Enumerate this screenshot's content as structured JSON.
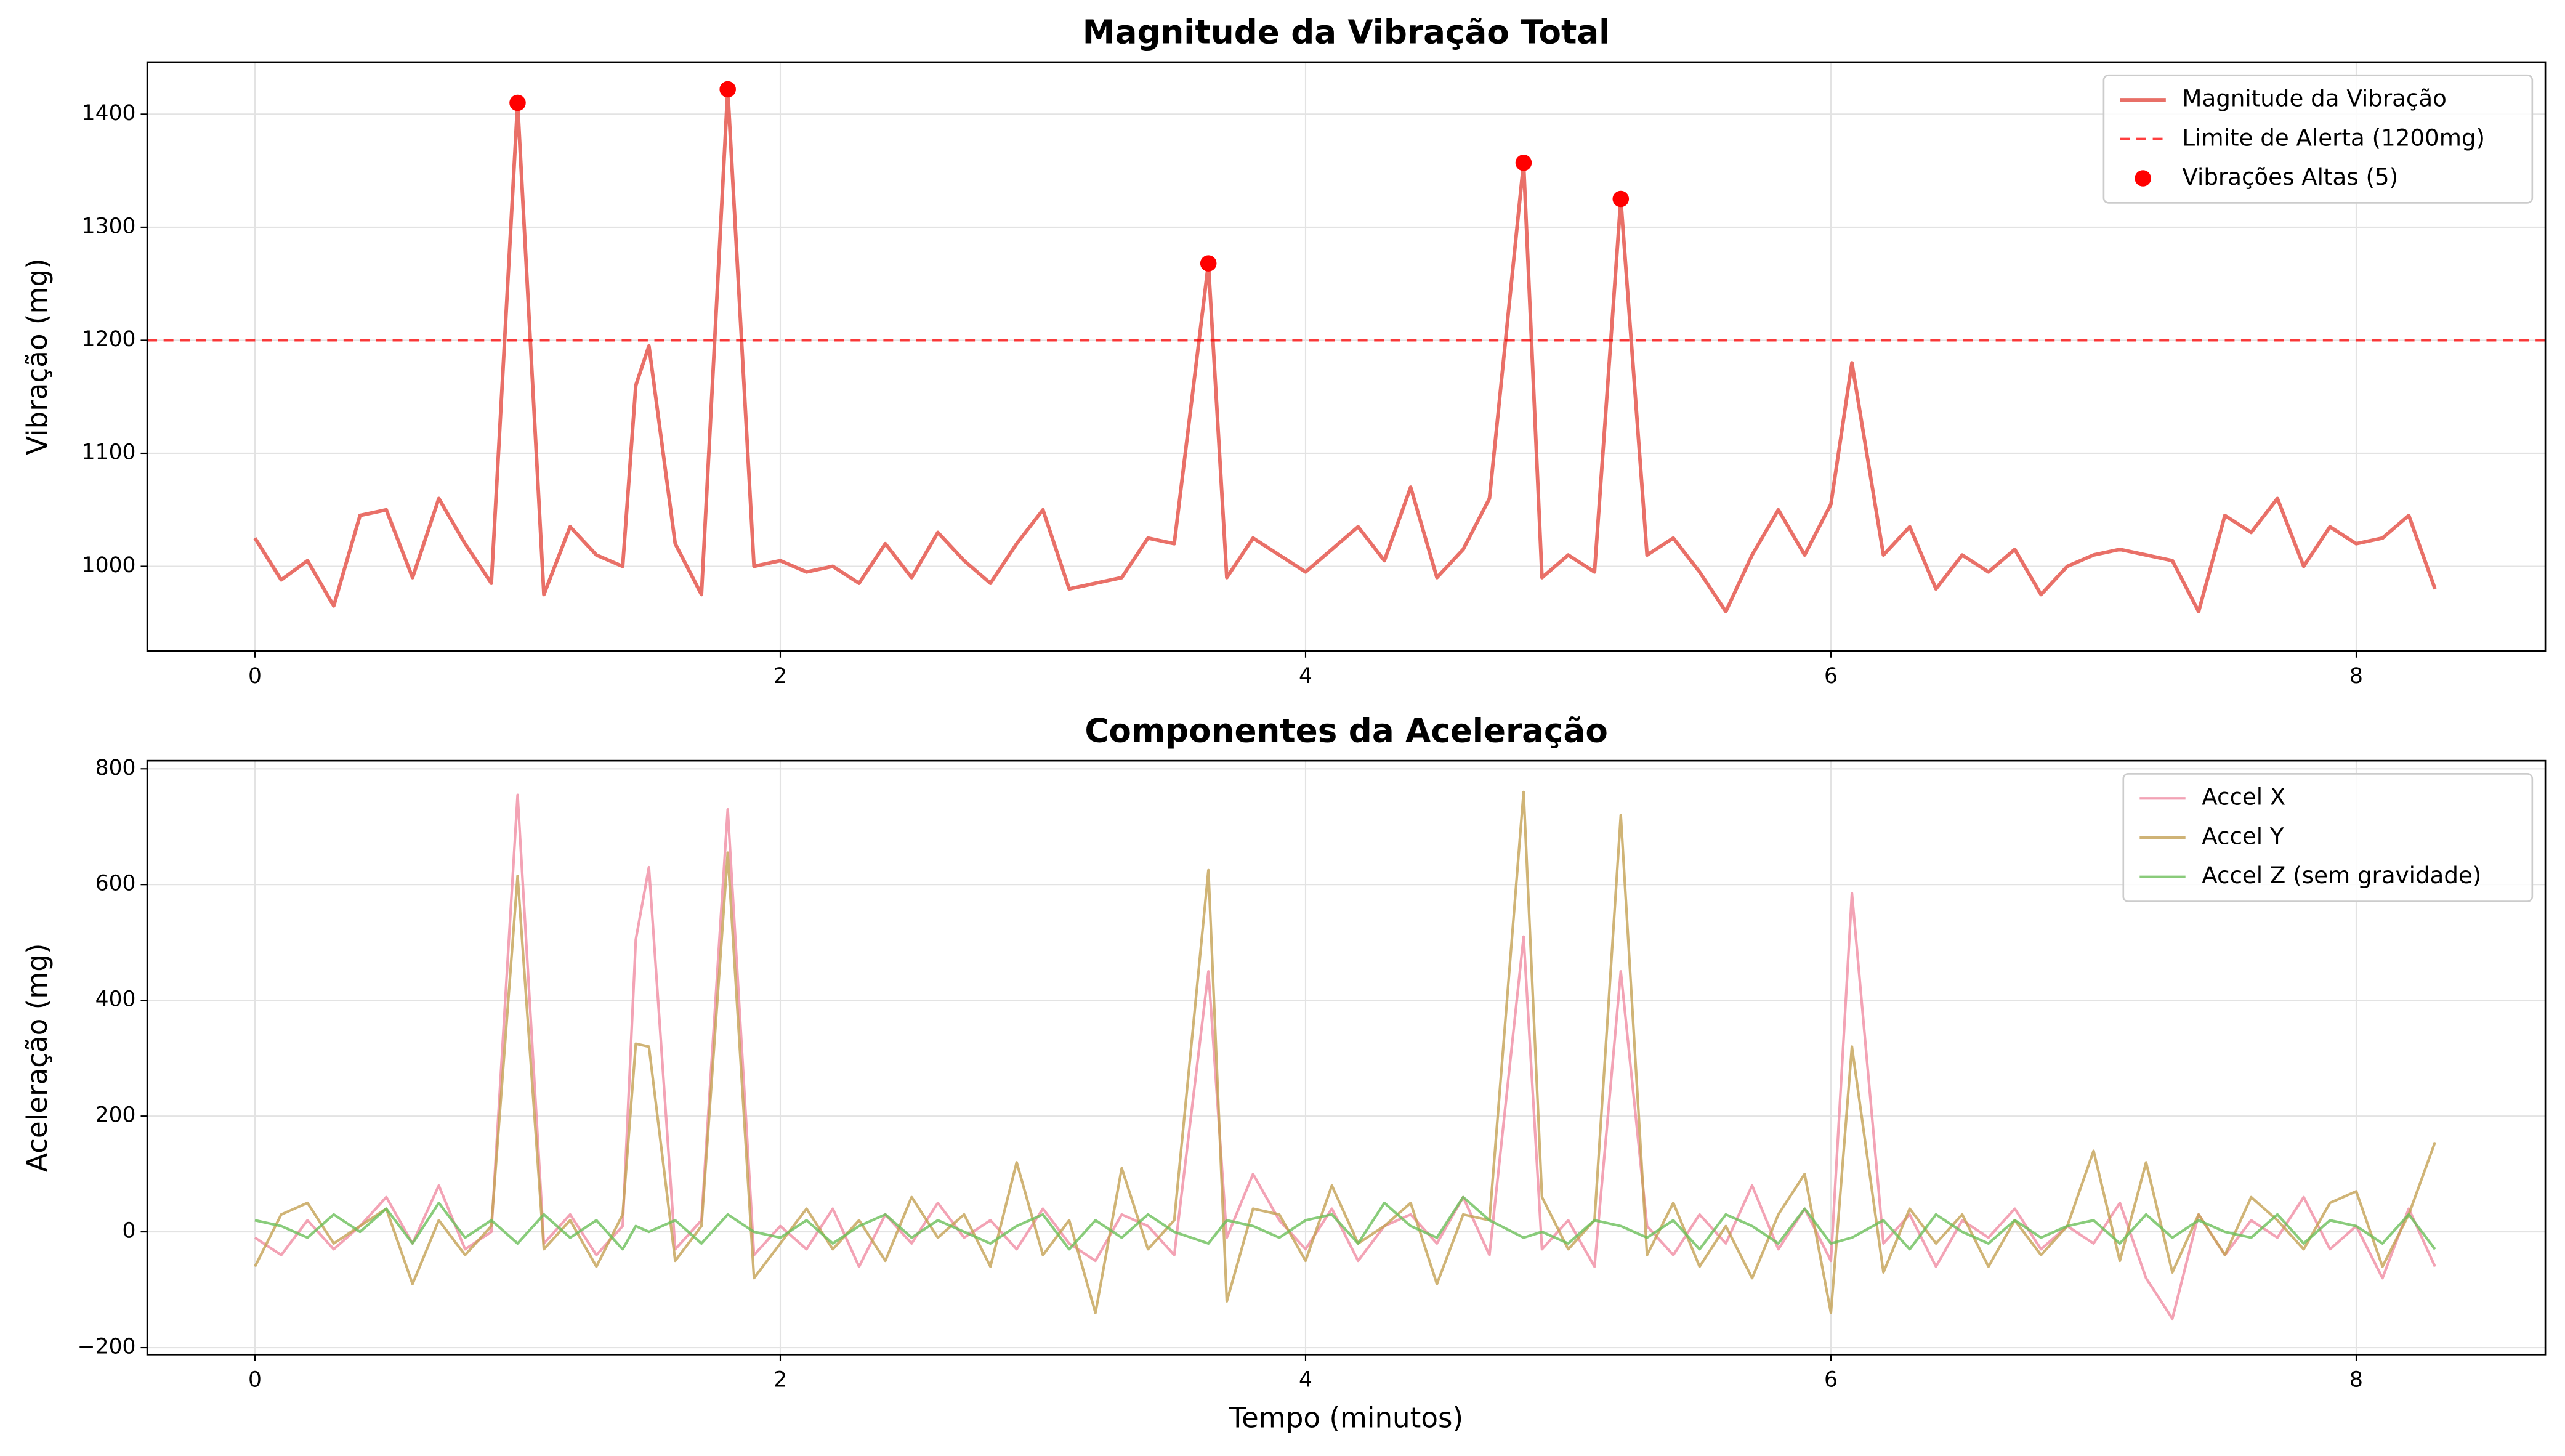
{
  "chart_data": [
    {
      "type": "line",
      "title": "Magnitude da Vibração Total",
      "ylabel": "Vibração (mg)",
      "x": [
        0,
        0.1,
        0.2,
        0.3,
        0.4,
        0.5,
        0.6,
        0.7,
        0.8,
        0.9,
        1.0,
        1.1,
        1.2,
        1.3,
        1.4,
        1.45,
        1.5,
        1.6,
        1.7,
        1.8,
        1.9,
        2.0,
        2.1,
        2.2,
        2.3,
        2.4,
        2.5,
        2.6,
        2.7,
        2.8,
        2.9,
        3.0,
        3.1,
        3.2,
        3.3,
        3.4,
        3.5,
        3.63,
        3.7,
        3.8,
        3.9,
        4.0,
        4.1,
        4.2,
        4.3,
        4.4,
        4.5,
        4.6,
        4.7,
        4.83,
        4.9,
        5.0,
        5.1,
        5.2,
        5.3,
        5.4,
        5.5,
        5.6,
        5.7,
        5.8,
        5.9,
        6.0,
        6.08,
        6.2,
        6.3,
        6.4,
        6.5,
        6.6,
        6.7,
        6.8,
        6.9,
        7.0,
        7.1,
        7.2,
        7.3,
        7.4,
        7.5,
        7.6,
        7.7,
        7.8,
        7.9,
        8.0,
        8.1,
        8.2,
        8.3
      ],
      "series": [
        {
          "name": "Magnitude da Vibração",
          "color": "#e5574d",
          "values": [
            1025,
            988,
            1005,
            965,
            1045,
            1050,
            990,
            1060,
            1020,
            985,
            1410,
            975,
            1035,
            1010,
            1000,
            1160,
            1195,
            1020,
            975,
            1422,
            1000,
            1005,
            995,
            1000,
            985,
            1020,
            990,
            1030,
            1005,
            985,
            1020,
            1050,
            980,
            985,
            990,
            1025,
            1020,
            1268,
            990,
            1025,
            1010,
            995,
            1015,
            1035,
            1005,
            1070,
            990,
            1015,
            1060,
            1357,
            990,
            1010,
            995,
            1325,
            1010,
            1025,
            995,
            960,
            1010,
            1050,
            1010,
            1055,
            1180,
            1010,
            1035,
            980,
            1010,
            995,
            1015,
            975,
            1000,
            1010,
            1015,
            1010,
            1005,
            960,
            1045,
            1030,
            1060,
            1000,
            1035,
            1020,
            1025,
            1045,
            980
          ]
        }
      ],
      "hline": {
        "name": "Limite de Alerta (1200mg)",
        "value": 1200,
        "color": "#ff0000"
      },
      "points": {
        "name": "Vibrações Altas (5)",
        "color": "#ff0000",
        "x": [
          1.0,
          1.8,
          3.63,
          4.83,
          5.2
        ],
        "values": [
          1410,
          1422,
          1268,
          1357,
          1325
        ]
      },
      "xlim": [
        -0.41,
        8.72
      ],
      "ylim": [
        925,
        1446
      ],
      "xticks": [
        0,
        2,
        4,
        6,
        8
      ],
      "yticks": [
        1000,
        1100,
        1200,
        1300,
        1400
      ],
      "grid": true,
      "legend": "upper right"
    },
    {
      "type": "line",
      "title": "Componentes da Aceleração",
      "xlabel": "Tempo (minutos)",
      "ylabel": "Aceleração (mg)",
      "x": [
        0,
        0.1,
        0.2,
        0.3,
        0.4,
        0.5,
        0.6,
        0.7,
        0.8,
        0.9,
        1.0,
        1.1,
        1.2,
        1.3,
        1.4,
        1.45,
        1.5,
        1.6,
        1.7,
        1.8,
        1.9,
        2.0,
        2.1,
        2.2,
        2.3,
        2.4,
        2.5,
        2.6,
        2.7,
        2.8,
        2.9,
        3.0,
        3.1,
        3.2,
        3.3,
        3.4,
        3.5,
        3.63,
        3.7,
        3.8,
        3.9,
        4.0,
        4.1,
        4.2,
        4.3,
        4.4,
        4.5,
        4.6,
        4.7,
        4.83,
        4.9,
        5.0,
        5.1,
        5.2,
        5.3,
        5.4,
        5.5,
        5.6,
        5.7,
        5.8,
        5.9,
        6.0,
        6.08,
        6.2,
        6.3,
        6.4,
        6.5,
        6.6,
        6.7,
        6.8,
        6.9,
        7.0,
        7.1,
        7.2,
        7.3,
        7.4,
        7.5,
        7.6,
        7.7,
        7.8,
        7.9,
        8.0,
        8.1,
        8.2,
        8.3
      ],
      "series": [
        {
          "name": "Accel X",
          "color": "#f08ca3",
          "values": [
            -10,
            -40,
            20,
            -30,
            10,
            60,
            -20,
            80,
            -30,
            0,
            755,
            -20,
            30,
            -40,
            10,
            505,
            630,
            -30,
            20,
            730,
            -40,
            10,
            -30,
            40,
            -60,
            30,
            -20,
            50,
            -10,
            20,
            -30,
            40,
            -20,
            -50,
            30,
            10,
            -40,
            450,
            -10,
            100,
            20,
            -30,
            40,
            -50,
            10,
            30,
            -20,
            60,
            -40,
            510,
            -30,
            20,
            -60,
            450,
            10,
            -40,
            30,
            -20,
            80,
            -30,
            40,
            -50,
            585,
            -20,
            30,
            -60,
            20,
            -10,
            40,
            -30,
            10,
            -20,
            50,
            -80,
            -150,
            30,
            -40,
            20,
            -10,
            60,
            -30,
            10,
            -80,
            40,
            -60
          ]
        },
        {
          "name": "Accel Y",
          "color": "#c4a154",
          "values": [
            -60,
            30,
            50,
            -20,
            10,
            40,
            -90,
            20,
            -40,
            10,
            615,
            -30,
            20,
            -60,
            30,
            325,
            320,
            -50,
            10,
            655,
            -80,
            -20,
            40,
            -30,
            20,
            -50,
            60,
            -10,
            30,
            -60,
            120,
            -40,
            20,
            -140,
            110,
            -30,
            20,
            625,
            -120,
            40,
            30,
            -50,
            80,
            -20,
            10,
            50,
            -90,
            30,
            20,
            760,
            60,
            -30,
            20,
            720,
            -40,
            50,
            -60,
            10,
            -80,
            30,
            100,
            -140,
            320,
            -70,
            40,
            -20,
            30,
            -60,
            20,
            -40,
            10,
            140,
            -50,
            120,
            -70,
            30,
            -40,
            60,
            20,
            -30,
            50,
            70,
            -60,
            30,
            155
          ]
        },
        {
          "name": "Accel Z (sem gravidade)",
          "color": "#6cbf5a",
          "values": [
            20,
            10,
            -10,
            30,
            0,
            40,
            -20,
            50,
            -10,
            20,
            -20,
            30,
            -10,
            20,
            -30,
            10,
            0,
            20,
            -20,
            30,
            0,
            -10,
            20,
            -20,
            10,
            30,
            -10,
            20,
            0,
            -20,
            10,
            30,
            -30,
            20,
            -10,
            30,
            0,
            -20,
            20,
            10,
            -10,
            20,
            30,
            -20,
            50,
            10,
            -10,
            60,
            20,
            -10,
            0,
            -20,
            20,
            10,
            -10,
            20,
            -30,
            30,
            10,
            -20,
            40,
            -20,
            -10,
            20,
            -30,
            30,
            0,
            -20,
            20,
            -10,
            10,
            20,
            -20,
            30,
            -10,
            20,
            0,
            -10,
            30,
            -20,
            20,
            10,
            -20,
            30,
            -30
          ]
        }
      ],
      "xlim": [
        -0.41,
        8.72
      ],
      "ylim": [
        -212,
        814
      ],
      "xticks": [
        0,
        2,
        4,
        6,
        8
      ],
      "yticks": [
        {
          "value": -200,
          "label": "−200"
        },
        0,
        200,
        400,
        600,
        800
      ],
      "grid": true,
      "legend": "upper right"
    }
  ]
}
